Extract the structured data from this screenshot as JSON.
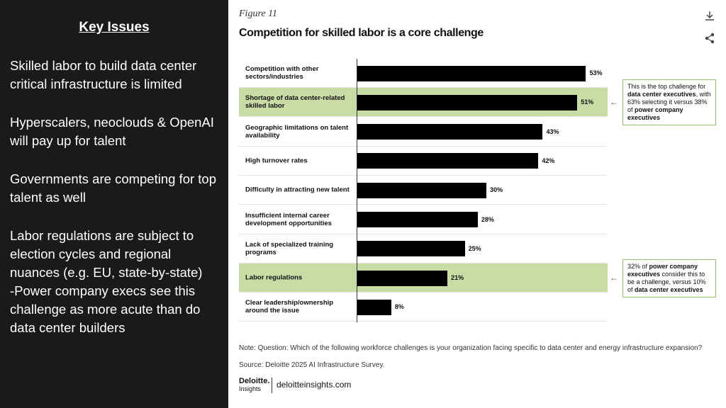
{
  "panel": {
    "title": "Key Issues",
    "paragraphs": [
      [
        "Skilled labor to build data center critical infrastructure is limited"
      ],
      [
        "Hyperscalers, neoclouds & OpenAI will pay up for talent"
      ],
      [
        "Governments are competing for top talent as well"
      ],
      [
        "Labor regulations are subject to election cycles and regional nuances (e.g. EU, state-by-state)",
        "-Power company execs see this challenge as more acute than do data center builders"
      ]
    ]
  },
  "chart_data": {
    "type": "bar",
    "orientation": "horizontal",
    "figure_label": "Figure 11",
    "title": "Competition for skilled labor is a core challenge",
    "categories": [
      "Competition with other sectors/industries",
      "Shortage of data center-related skilled labor",
      "Geographic limitations on talent availability",
      "High turnover rates",
      "Difficulty in attracting new talent",
      "Insufficient internal career development opportunities",
      "Lack of specialized training programs",
      "Labor regulations",
      "Clear leadership/ownership around the issue"
    ],
    "values": [
      53,
      51,
      43,
      42,
      30,
      28,
      25,
      21,
      8
    ],
    "value_labels": [
      "53%",
      "51%",
      "43%",
      "42%",
      "30%",
      "28%",
      "25%",
      "21%",
      "8%"
    ],
    "color": "#000000",
    "highlight_color": "#c9dca6",
    "highlight": [
      1,
      7
    ],
    "xlim": [
      0,
      58
    ],
    "annotations": [
      {
        "category": 1,
        "parts": [
          {
            "text": "This is the top challenge for ",
            "bold": false
          },
          {
            "text": "data center executives",
            "bold": true
          },
          {
            "text": ", with 63% selecting it versus 38% of ",
            "bold": false
          },
          {
            "text": "power company executives",
            "bold": true
          }
        ]
      },
      {
        "category": 7,
        "parts": [
          {
            "text": "32% of ",
            "bold": false
          },
          {
            "text": "power company executives",
            "bold": true
          },
          {
            "text": " consider this to be a challenge, versus 10% of ",
            "bold": false
          },
          {
            "text": "data center executives",
            "bold": true
          }
        ]
      }
    ],
    "note": "Note: Question: Which of the following workforce challenges is your organization facing specific to data center and energy infrastructure expansion?",
    "source": "Source: Deloitte 2025 AI Infrastructure Survey.",
    "logo": "Deloitte.",
    "logo_sub": "Insights",
    "site": "deloitteinsights.com"
  }
}
